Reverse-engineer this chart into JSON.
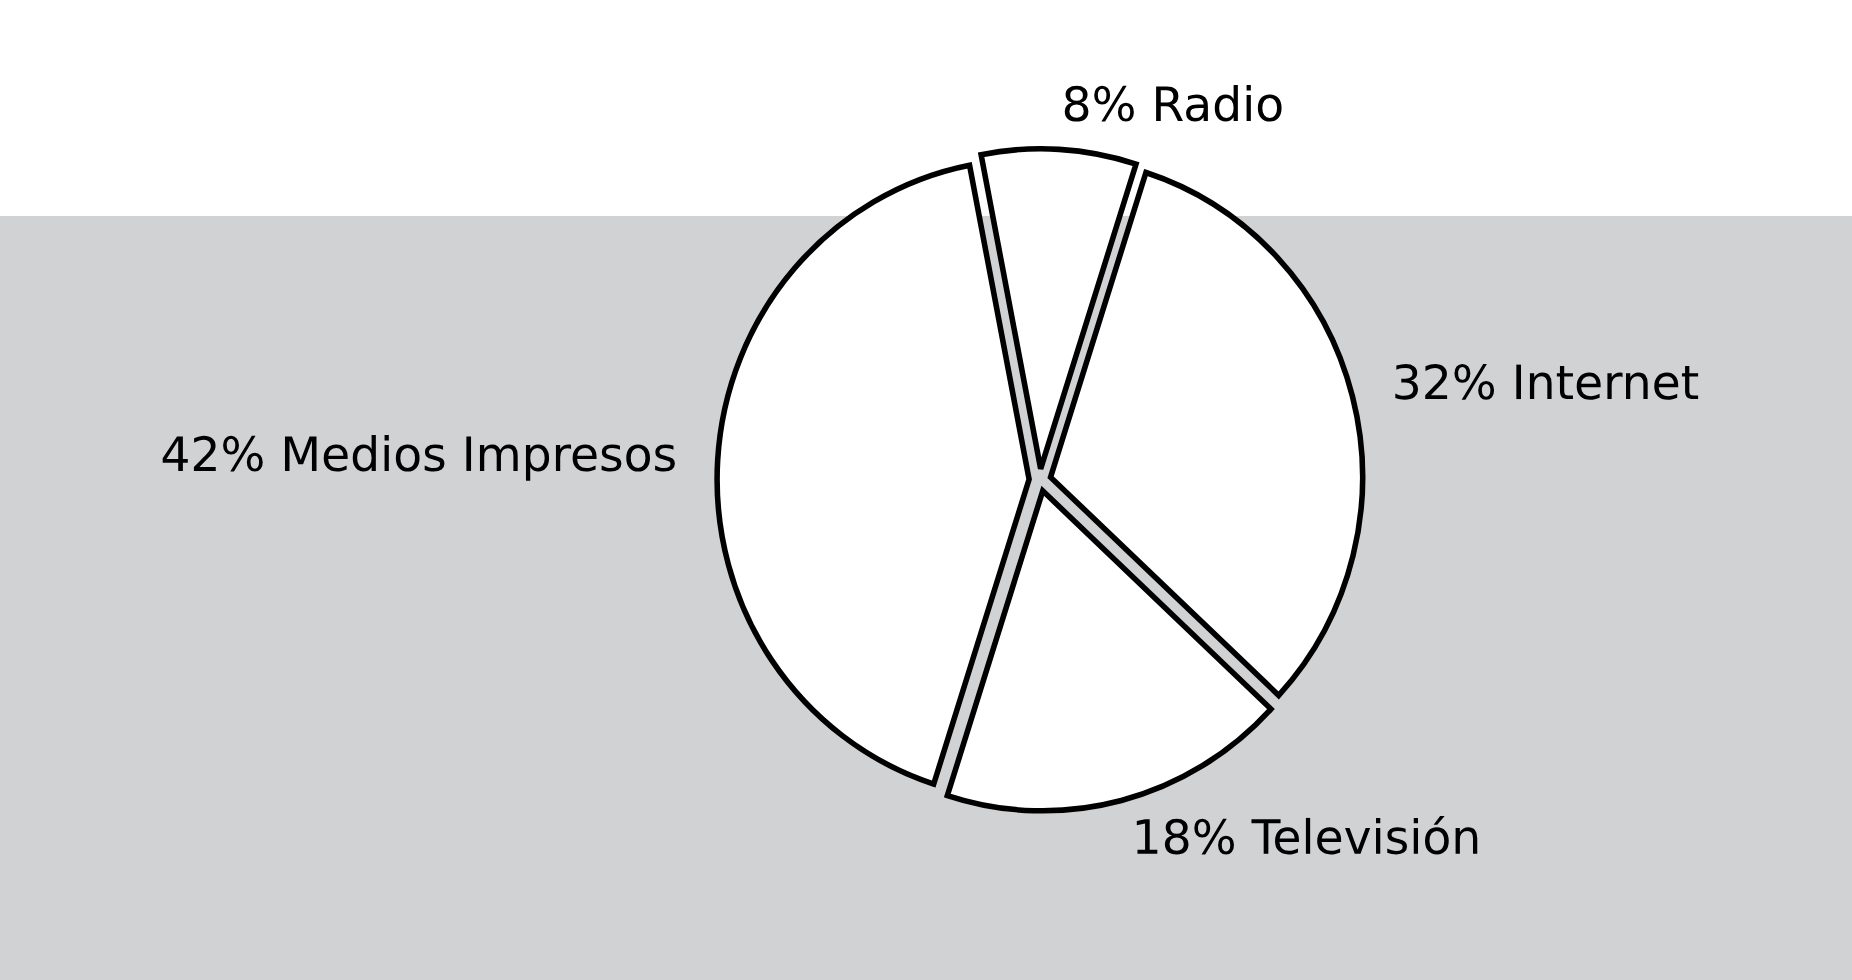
{
  "chart_data": {
    "type": "pie",
    "categories": [
      "8% Radio",
      "32% Internet",
      "18% Televisión",
      "42% Medios Impresos"
    ],
    "values": [
      8,
      32,
      18,
      42
    ],
    "colors": [
      "#ffffff",
      "#ffffff",
      "#ffffff",
      "#ffffff"
    ]
  }
}
